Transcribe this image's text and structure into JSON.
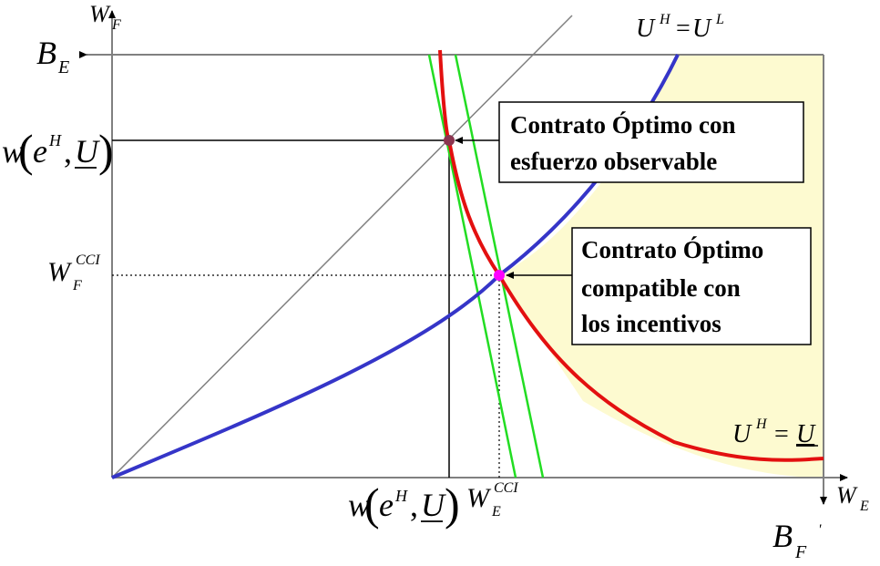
{
  "colors": {
    "shaded_region": "#fdfad0",
    "indifference_blue": "#3535c8",
    "participation_red": "#e31010",
    "isoprofit_green": "#22dd22",
    "optimum_observable_point": "#8b3550",
    "optimum_incentive_point": "#ff00ff",
    "certainty_line": "#808080"
  },
  "axes": {
    "y_label_main": "W",
    "y_label_sub": "F",
    "x_label_main": "W",
    "x_label_sub": "E",
    "top_left_label_main": "B",
    "top_left_label_sub": "E",
    "bottom_right_label_main": "B",
    "bottom_right_label_sub": "F",
    "bottom_right_tick": "'"
  },
  "curves": {
    "blue_label_left": "U",
    "blue_label_left_sup": "H",
    "blue_label_eq": "=",
    "blue_label_right": "U",
    "blue_label_right_sup": "L",
    "red_label_left": "U",
    "red_label_left_sup": "H",
    "red_label_eq": "=",
    "red_label_right": "U"
  },
  "y_ticks": {
    "observable": {
      "w": "w",
      "e": "e",
      "e_sup": "H",
      "comma": ",",
      "u": "U"
    },
    "incentive": {
      "main": "W",
      "sup": "CCI",
      "sub": "F"
    }
  },
  "x_ticks": {
    "observable": {
      "w": "w",
      "e": "e",
      "e_sup": "H",
      "comma": ",",
      "u": "U"
    },
    "incentive": {
      "main": "W",
      "sup": "CCI",
      "sub": "E"
    }
  },
  "callouts": {
    "observable": [
      "Contrato Óptimo con",
      "esfuerzo observable"
    ],
    "incentive": [
      "Contrato Óptimo",
      "compatible con",
      "los incentivos"
    ]
  }
}
